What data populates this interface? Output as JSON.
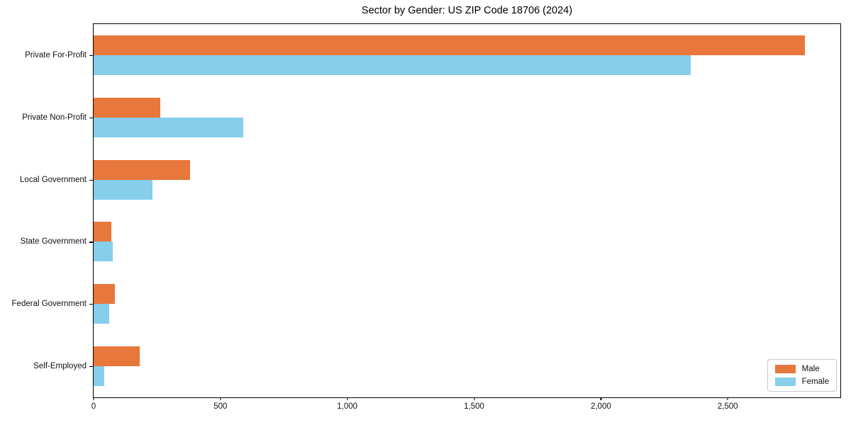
{
  "chart_data": {
    "type": "bar",
    "orientation": "horizontal",
    "title": "Sector by Gender: US ZIP Code 18706 (2024)",
    "xlabel": "",
    "ylabel": "",
    "categories": [
      "Private For-Profit",
      "Private Non-Profit",
      "Local Government",
      "State Government",
      "Federal Government",
      "Self-Employed"
    ],
    "series": [
      {
        "name": "Male",
        "color": "#E8773C",
        "values": [
          2804,
          264,
          381,
          69,
          85,
          183
        ]
      },
      {
        "name": "Female",
        "color": "#87CEEB",
        "values": [
          2354,
          590,
          232,
          75,
          62,
          42
        ]
      }
    ],
    "xlim": [
      0,
      2944
    ],
    "xticks": {
      "values": [
        0,
        500,
        1000,
        1500,
        2000,
        2500
      ],
      "labels": [
        "0",
        "500",
        "1,000",
        "1,500",
        "2,000",
        "2,500"
      ]
    },
    "legend": {
      "position": "lower right",
      "entries": [
        "Male",
        "Female"
      ]
    },
    "grid": false
  },
  "colors": {
    "background": "#ffffff",
    "spine": "#000000",
    "male": "#E8773C",
    "female": "#87CEEB",
    "legend_border": "#c9c9c9"
  }
}
